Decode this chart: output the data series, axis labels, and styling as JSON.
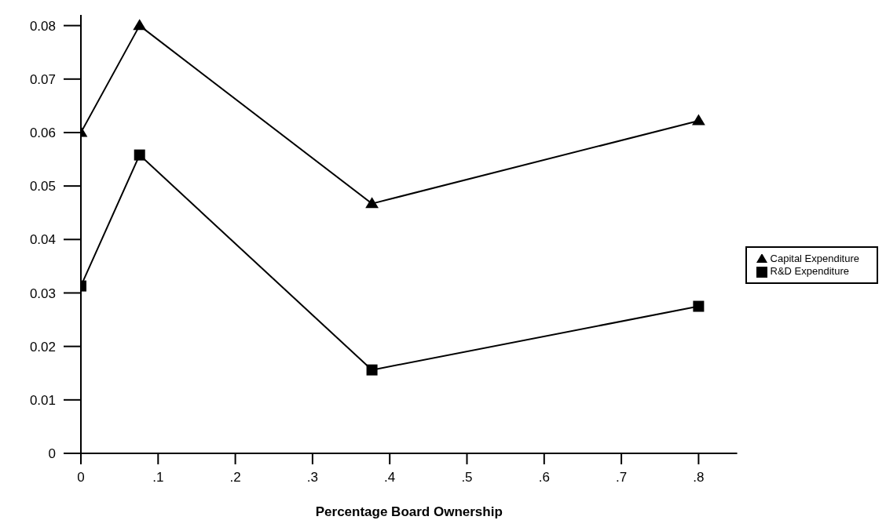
{
  "chart_data": {
    "type": "line",
    "xlabel": "Percentage Board Ownership",
    "xlim": [
      0,
      0.85
    ],
    "xticks": [
      {
        "value": 0,
        "label": "0"
      },
      {
        "value": 0.1,
        "label": ".1"
      },
      {
        "value": 0.2,
        "label": ".2"
      },
      {
        "value": 0.3,
        "label": ".3"
      },
      {
        "value": 0.4,
        "label": ".4"
      },
      {
        "value": 0.5,
        "label": ".5"
      },
      {
        "value": 0.6,
        "label": ".6"
      },
      {
        "value": 0.7,
        "label": ".7"
      },
      {
        "value": 0.8,
        "label": ".8"
      }
    ],
    "ylim": [
      0,
      0.082
    ],
    "yticks": [
      0,
      0.01,
      0.02,
      0.03,
      0.04,
      0.05,
      0.06,
      0.07,
      0.08
    ],
    "x": [
      0,
      0.076,
      0.377,
      0.8
    ],
    "series": [
      {
        "name": "Capital Expenditure",
        "color": "#000000",
        "marker": "triangle",
        "values": [
          0.06,
          0.08,
          0.0467,
          0.0622
        ]
      },
      {
        "name": "R&D Expenditure",
        "color": "#000000",
        "marker": "square",
        "values": [
          0.0313,
          0.0558,
          0.0156,
          0.0275
        ]
      }
    ],
    "legend": "right",
    "grid": false,
    "line_style": "solid"
  }
}
